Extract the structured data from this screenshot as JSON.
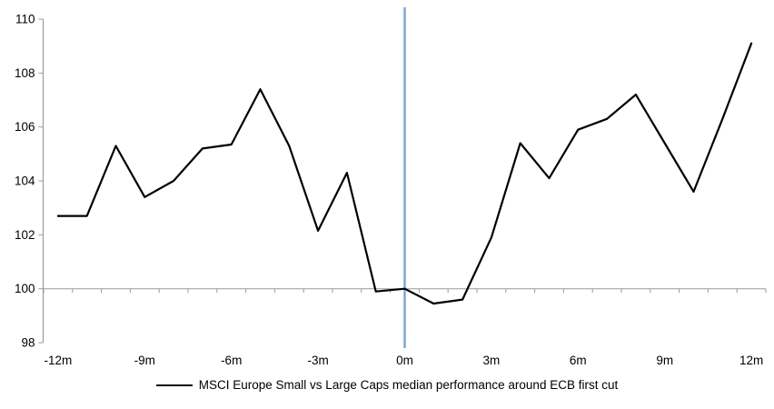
{
  "legend": {
    "label": "MSCI Europe Small vs Large Caps median performance around ECB first cut"
  },
  "chart_data": {
    "type": "line",
    "title": "",
    "xlabel": "",
    "ylabel": "",
    "x": [
      -12,
      -11,
      -10,
      -9,
      -8,
      -7,
      -6,
      -5,
      -4,
      -3,
      -2,
      -1,
      0,
      1,
      2,
      3,
      4,
      5,
      6,
      7,
      8,
      9,
      10,
      11,
      12
    ],
    "series": [
      {
        "name": "MSCI Europe Small vs Large Caps median performance around ECB first cut",
        "values": [
          102.7,
          102.7,
          105.3,
          103.4,
          104.0,
          105.2,
          105.35,
          107.4,
          105.3,
          102.15,
          104.3,
          99.9,
          100.0,
          99.45,
          99.6,
          101.9,
          105.4,
          104.1,
          105.9,
          106.3,
          107.2,
          105.4,
          103.6,
          106.3,
          109.1
        ]
      }
    ],
    "x_tick_positions": [
      -12,
      -9,
      -6,
      -3,
      0,
      3,
      6,
      9,
      12
    ],
    "x_tick_labels": [
      "-12m",
      "-9m",
      "-6m",
      "-3m",
      "0m",
      "3m",
      "6m",
      "9m",
      "12m"
    ],
    "y_ticks": [
      98,
      100,
      102,
      104,
      106,
      108,
      110
    ],
    "ylim": [
      98,
      110
    ],
    "xlim": [
      -12.5,
      12.5
    ],
    "grid": "single horizontal gridline at 100 with category tick marks; no other gridlines",
    "legend_position": "bottom-center",
    "event_line_x": 0,
    "colors": {
      "series": "#000000",
      "event_line": "#7EA6CE",
      "axis": "#9B9B9B",
      "text": "#000000",
      "background": "#FFFFFF"
    }
  }
}
